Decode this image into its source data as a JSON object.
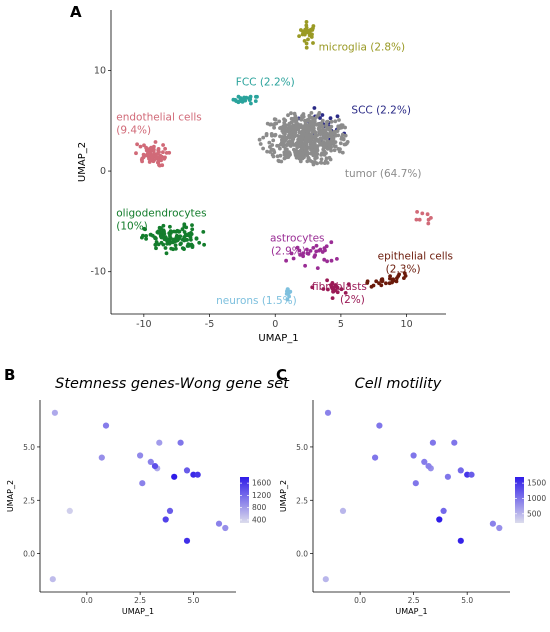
{
  "panels": {
    "a": {
      "letter": "A"
    },
    "b": {
      "letter": "B",
      "title": "Stemness genes-Wong gene set"
    },
    "c": {
      "letter": "C",
      "title": "Cell motility"
    }
  },
  "chart_data": [
    {
      "type": "scatter",
      "panel": "A",
      "xlabel": "UMAP_1",
      "ylabel": "UMAP_2",
      "xlim": [
        -12.5,
        13
      ],
      "ylim": [
        -14.2,
        16
      ],
      "xticks": [
        -10,
        -5,
        0,
        5,
        10
      ],
      "yticks": [
        -10,
        0,
        10
      ],
      "xtick_labels": [
        "-10",
        "-5",
        "0",
        "5",
        "10"
      ],
      "ytick_labels": [
        "-10",
        "0",
        "10"
      ],
      "grid": false,
      "clusters": [
        {
          "key": "microglia",
          "line1": "microglia (2.8%)",
          "line2": "",
          "color": "#9a9a25",
          "label_x": 3.3,
          "label_y": 12.0,
          "center": [
            2.5,
            13.7
          ],
          "spread": [
            0.6,
            1.0
          ],
          "n": 28
        },
        {
          "key": "fcc",
          "line1": "FCC (2.2%)",
          "line2": "",
          "color": "#2aa39c",
          "label_x": -3.0,
          "label_y": 8.5,
          "center": [
            -2.2,
            7.1
          ],
          "spread": [
            0.9,
            0.35
          ],
          "n": 24
        },
        {
          "key": "scc",
          "line1": "SCC (2.2%)",
          "line2": "",
          "color": "#2a2a86",
          "label_x": 5.8,
          "label_y": 5.7,
          "center": [
            3.5,
            4.2
          ],
          "spread": [
            1.5,
            1.5
          ],
          "n": 30
        },
        {
          "key": "tumor",
          "line1": "tumor (64.7%)",
          "line2": "",
          "color": "#8c8c8c",
          "label_x": 5.3,
          "label_y": -0.6,
          "center": [
            2.3,
            3.2
          ],
          "spread": [
            3.1,
            2.4
          ],
          "n": 560
        },
        {
          "key": "endothelial",
          "line1": "endothelial cells",
          "line2": "(9.4%)",
          "color": "#d16a78",
          "label_x": -12.1,
          "label_y": 5.0,
          "center": [
            -9.5,
            1.6
          ],
          "spread": [
            1.1,
            1.0
          ],
          "n": 70
        },
        {
          "key": "oligodendrocytes",
          "line1": "oligodendrocytes",
          "line2": "(10%)",
          "color": "#137d2c",
          "label_x": -12.1,
          "label_y": -4.5,
          "center": [
            -7.8,
            -6.7
          ],
          "spread": [
            1.9,
            1.2
          ],
          "n": 120
        },
        {
          "key": "astrocytes",
          "line1": "astrocytes",
          "line2": "(2.9%)",
          "color": "#9a2d95",
          "label_x": -0.4,
          "label_y": -7.0,
          "center": [
            2.8,
            -8.2
          ],
          "spread": [
            1.6,
            1.0
          ],
          "n": 30
        },
        {
          "key": "epithelial",
          "line1": "epithelial cells",
          "line2": "(2.3%)",
          "color": "#6a1a0a",
          "label_x": 7.8,
          "label_y": -8.8,
          "center": [
            8.6,
            -10.8
          ],
          "spread": [
            1.5,
            0.6
          ],
          "n": 28
        },
        {
          "key": "fibroblasts",
          "line1": "fibroblasts",
          "line2": "(2%)",
          "color": "#9a1a56",
          "label_x": 2.8,
          "label_y": -11.8,
          "center": [
            4.3,
            -11.7
          ],
          "spread": [
            0.9,
            0.7
          ],
          "n": 22
        },
        {
          "key": "neurons",
          "line1": "neurons (1.5%)",
          "line2": "",
          "color": "#7ec0de",
          "label_x": -4.5,
          "label_y": -13.2,
          "center": [
            1.0,
            -11.9
          ],
          "spread": [
            0.3,
            0.5
          ],
          "n": 12
        },
        {
          "key": "pink-cluster",
          "line1": "",
          "line2": "",
          "color": "#d16a78",
          "label_x": 0,
          "label_y": 0,
          "center": [
            11.5,
            -4.8
          ],
          "spread": [
            0.8,
            0.6
          ],
          "n": 8
        }
      ]
    },
    {
      "type": "scatter",
      "panel": "B",
      "title": "Stemness genes-Wong gene set",
      "xlabel": "UMAP_1",
      "ylabel": "UMAP_2",
      "xlim": [
        -2.2,
        7.0
      ],
      "ylim": [
        -1.8,
        7.2
      ],
      "xticks": [
        0,
        2.5,
        5
      ],
      "yticks": [
        0,
        2.5,
        5
      ],
      "xtick_labels": [
        "0.0",
        "2.5",
        "5.0"
      ],
      "ytick_labels": [
        "0.0",
        "2.5",
        "5.0"
      ],
      "legend": {
        "placement": "right",
        "ticks": [
          400,
          800,
          1200,
          1600
        ],
        "tick_labels": [
          "400",
          "800",
          "1200",
          "1600"
        ],
        "min": 300,
        "max": 1800,
        "low_color": "#dcdcec",
        "high_color": "#2f1ce8"
      },
      "points": [
        {
          "x": -1.5,
          "y": 6.6,
          "v": 700
        },
        {
          "x": -1.6,
          "y": -1.2,
          "v": 550
        },
        {
          "x": -0.8,
          "y": 2.0,
          "v": 400
        },
        {
          "x": 0.9,
          "y": 6.0,
          "v": 1050
        },
        {
          "x": 0.7,
          "y": 4.5,
          "v": 900
        },
        {
          "x": 2.5,
          "y": 4.6,
          "v": 950
        },
        {
          "x": 2.6,
          "y": 3.3,
          "v": 1000
        },
        {
          "x": 3.0,
          "y": 4.3,
          "v": 1000
        },
        {
          "x": 3.4,
          "y": 5.2,
          "v": 800
        },
        {
          "x": 3.3,
          "y": 4.0,
          "v": 700
        },
        {
          "x": 3.2,
          "y": 4.1,
          "v": 1400
        },
        {
          "x": 4.4,
          "y": 5.2,
          "v": 1100
        },
        {
          "x": 4.1,
          "y": 3.6,
          "v": 1800
        },
        {
          "x": 4.7,
          "y": 3.9,
          "v": 1300
        },
        {
          "x": 5.0,
          "y": 3.7,
          "v": 1700
        },
        {
          "x": 5.2,
          "y": 3.7,
          "v": 1600
        },
        {
          "x": 3.7,
          "y": 1.6,
          "v": 1500
        },
        {
          "x": 3.9,
          "y": 2.0,
          "v": 1300
        },
        {
          "x": 4.7,
          "y": 0.6,
          "v": 1650
        },
        {
          "x": 6.2,
          "y": 1.4,
          "v": 1000
        },
        {
          "x": 6.5,
          "y": 1.2,
          "v": 900
        }
      ]
    },
    {
      "type": "scatter",
      "panel": "C",
      "title": "Cell motility",
      "xlabel": "UMAP_1",
      "ylabel": "UMAP_2",
      "xlim": [
        -2.2,
        7.0
      ],
      "ylim": [
        -1.8,
        7.2
      ],
      "xticks": [
        0,
        2.5,
        5
      ],
      "yticks": [
        0,
        2.5,
        5
      ],
      "xtick_labels": [
        "0.0",
        "2.5",
        "5.0"
      ],
      "ytick_labels": [
        "0.0",
        "2.5",
        "5.0"
      ],
      "legend": {
        "placement": "right",
        "ticks": [
          500,
          1000,
          1500
        ],
        "tick_labels": [
          "500",
          "1000",
          "1500"
        ],
        "min": 200,
        "max": 1700,
        "low_color": "#dcdcec",
        "high_color": "#2f1ce8"
      },
      "points": [
        {
          "x": -1.5,
          "y": 6.6,
          "v": 900
        },
        {
          "x": -1.6,
          "y": -1.2,
          "v": 500
        },
        {
          "x": -0.8,
          "y": 2.0,
          "v": 500
        },
        {
          "x": 0.9,
          "y": 6.0,
          "v": 1000
        },
        {
          "x": 0.7,
          "y": 4.5,
          "v": 1000
        },
        {
          "x": 2.5,
          "y": 4.6,
          "v": 1000
        },
        {
          "x": 2.6,
          "y": 3.3,
          "v": 1000
        },
        {
          "x": 3.0,
          "y": 4.3,
          "v": 950
        },
        {
          "x": 3.4,
          "y": 5.2,
          "v": 1000
        },
        {
          "x": 3.3,
          "y": 4.0,
          "v": 800
        },
        {
          "x": 3.2,
          "y": 4.1,
          "v": 900
        },
        {
          "x": 4.4,
          "y": 5.2,
          "v": 1000
        },
        {
          "x": 4.1,
          "y": 3.6,
          "v": 1000
        },
        {
          "x": 4.7,
          "y": 3.9,
          "v": 1100
        },
        {
          "x": 5.0,
          "y": 3.7,
          "v": 1500
        },
        {
          "x": 5.2,
          "y": 3.7,
          "v": 1200
        },
        {
          "x": 3.7,
          "y": 1.6,
          "v": 1700
        },
        {
          "x": 3.9,
          "y": 2.0,
          "v": 1100
        },
        {
          "x": 4.7,
          "y": 0.6,
          "v": 1650
        },
        {
          "x": 6.2,
          "y": 1.4,
          "v": 900
        },
        {
          "x": 6.5,
          "y": 1.2,
          "v": 800
        }
      ]
    }
  ]
}
